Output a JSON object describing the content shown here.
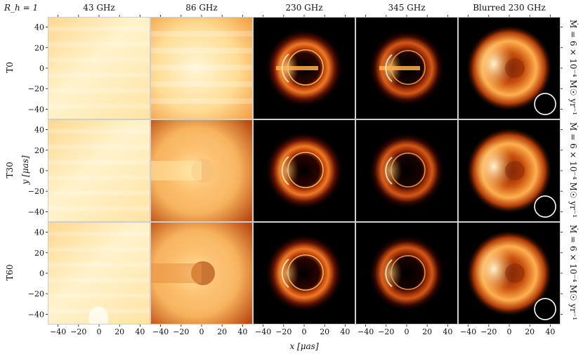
{
  "chart_data": {
    "type": "heatmap",
    "corner_label": "R_h = 1",
    "columns": [
      "43 GHz",
      "86 GHz",
      "230 GHz",
      "345 GHz",
      "Blurred 230 GHz"
    ],
    "rows": [
      "T0",
      "T30",
      "T60"
    ],
    "row_right_label": "Ṁ = 6 × 10⁻⁴ M☉ yr⁻¹",
    "xlabel": "x  [μas]",
    "ylabel": "y  [μas]",
    "xlim": [
      -50,
      50
    ],
    "ylim": [
      -50,
      50
    ],
    "xticks": [
      -40,
      -20,
      0,
      20,
      40
    ],
    "yticks": [
      -40,
      -20,
      0,
      20,
      40
    ],
    "colormap": "afmhot",
    "blur_beam_marker": "circle",
    "colors": {
      "background": "#000000",
      "ring": "#ff9a30",
      "hot": "#fff2c4",
      "grid": "#cccccc"
    }
  }
}
